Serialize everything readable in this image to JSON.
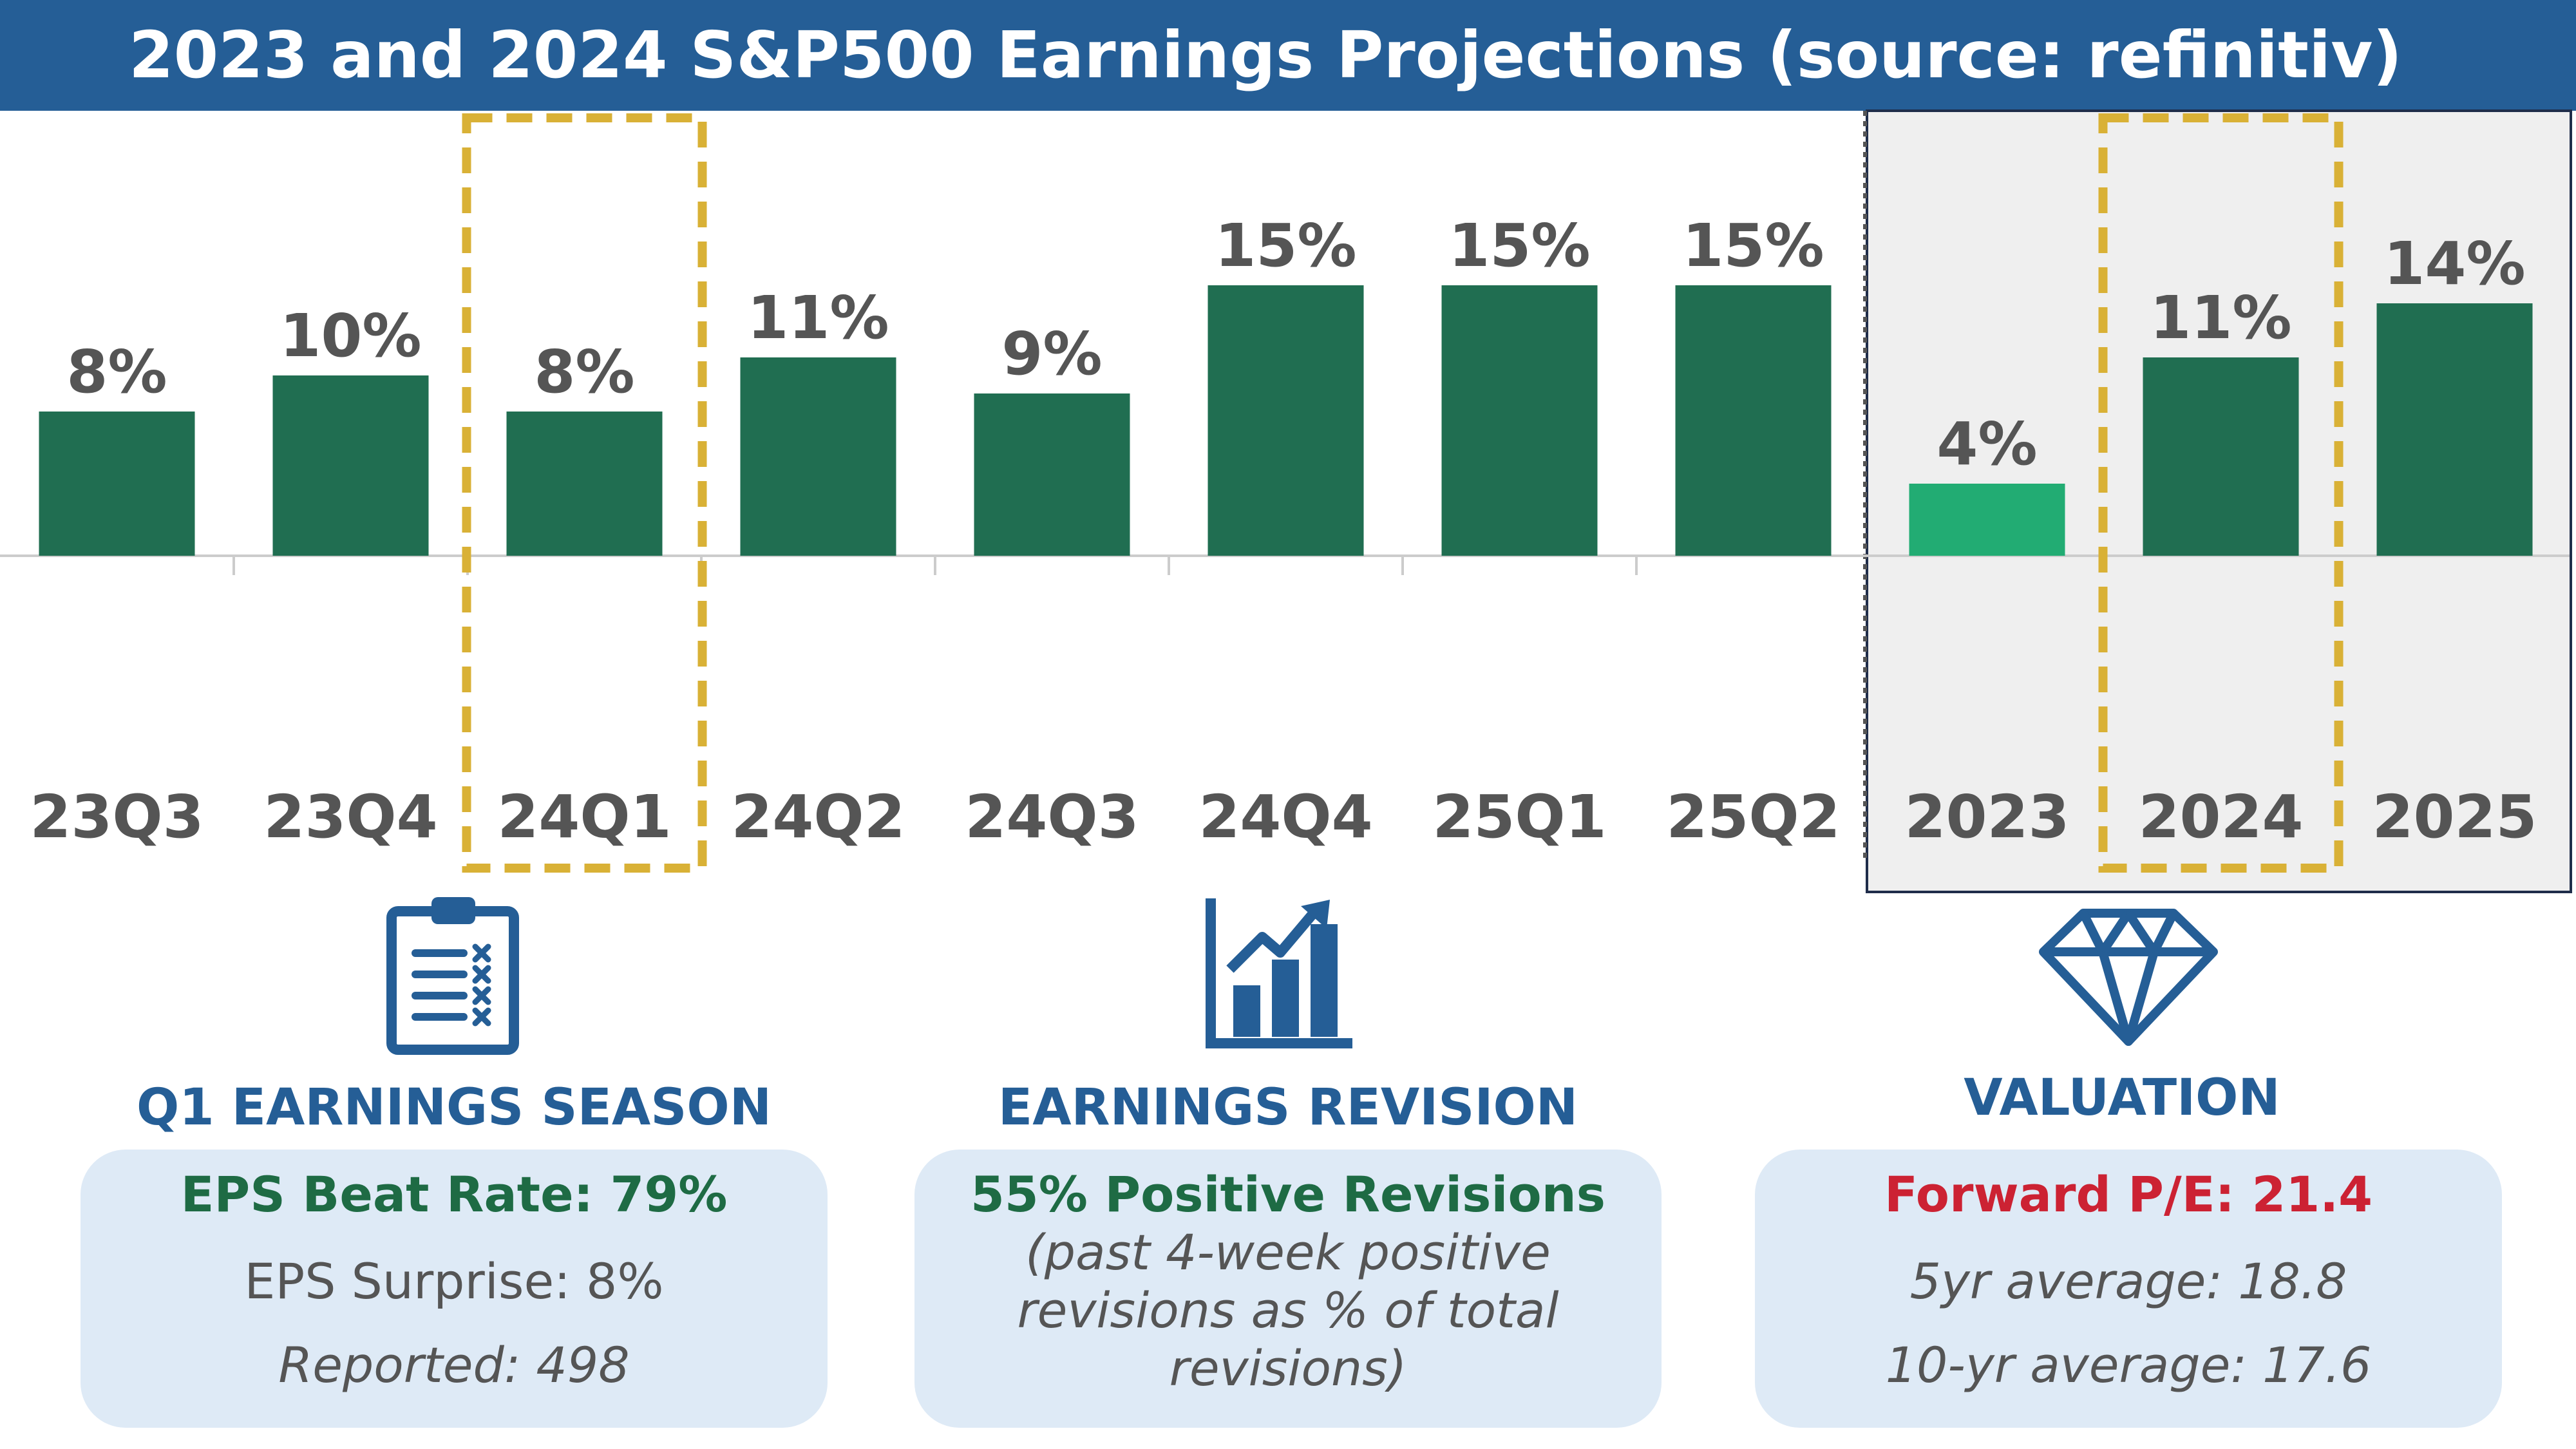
{
  "title": "2023 and 2024 S&P500 Earnings Projections (source: refinitiv)",
  "colors": {
    "header_bg": "#255E96",
    "bar": "#206E51",
    "bar_highlight": "#22AC73",
    "label_text": "#555555",
    "highlight_box": "#D9B136",
    "panel_bg": "#EFEFEF",
    "card_bg": "#DEEAF6",
    "section_title": "#255E96",
    "green_text": "#1E6B44",
    "red_text": "#CC2233"
  },
  "chart_data": {
    "type": "bar",
    "categories": [
      "23Q3",
      "23Q4",
      "24Q1",
      "24Q2",
      "24Q3",
      "24Q4",
      "25Q1",
      "25Q2",
      "2023",
      "2024",
      "2025"
    ],
    "values": [
      8,
      10,
      8,
      11,
      9,
      15,
      15,
      15,
      4,
      11,
      14
    ],
    "data_labels": [
      "8%",
      "10%",
      "8%",
      "11%",
      "9%",
      "15%",
      "15%",
      "15%",
      "4%",
      "11%",
      "14%"
    ],
    "unit": "%",
    "highlighted_categories": [
      "24Q1",
      "2024"
    ],
    "lighter_bar_category": "2023",
    "annual_panel_categories": [
      "2023",
      "2024",
      "2025"
    ],
    "grid": false,
    "legend": "none"
  },
  "sections": [
    {
      "title": "Q1 EARNINGS SEASON",
      "icon": "clipboard-checklist-icon",
      "lead": "EPS Beat Rate: 79%",
      "lines": [
        "EPS Surprise: 8%",
        "Reported: 498"
      ]
    },
    {
      "title": "EARNINGS REVISION",
      "icon": "bar-chart-growth-icon",
      "lead": "55% Positive Revisions",
      "lines": [
        "(past 4-week positive",
        "revisions as % of total",
        "revisions)"
      ]
    },
    {
      "title": "VALUATION",
      "icon": "diamond-icon",
      "lead": "Forward P/E: 21.4",
      "lines": [
        "5yr average: 18.8",
        "10-yr average: 17.6"
      ]
    }
  ]
}
